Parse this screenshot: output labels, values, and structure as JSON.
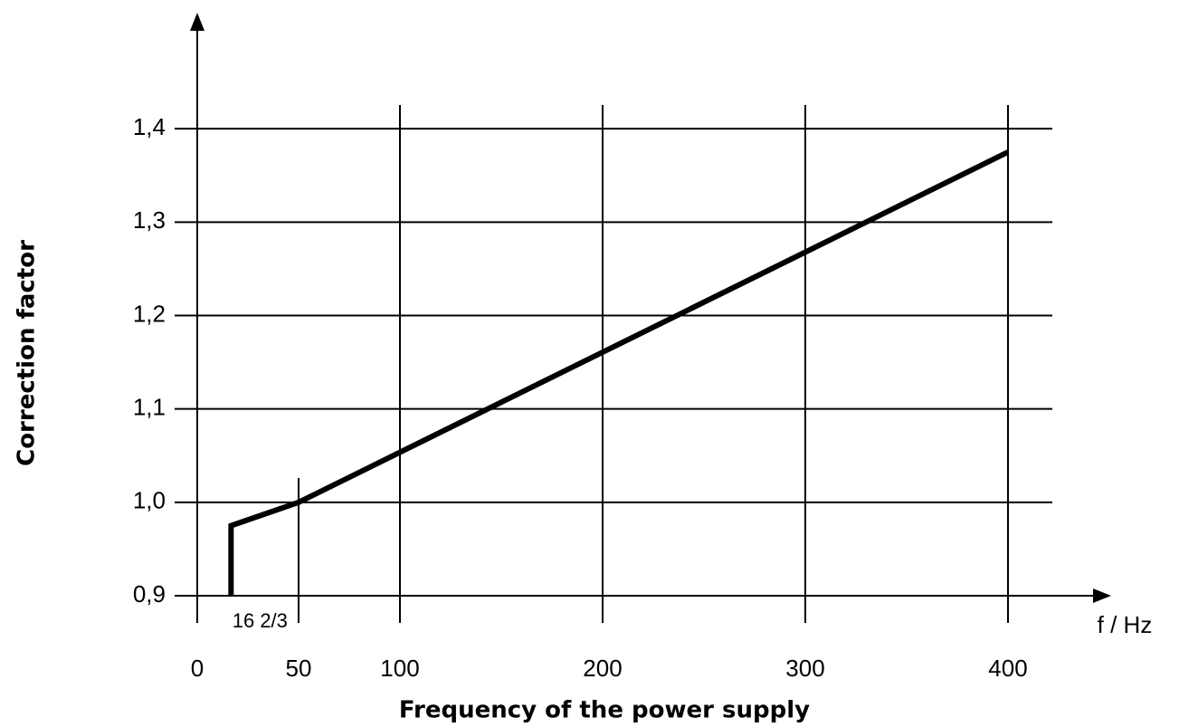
{
  "chart_data": {
    "type": "line",
    "y_label": "Correction factor",
    "x_label": "Frequency of the power supply",
    "x_unit": "f / Hz",
    "series": [
      {
        "color": "#000000",
        "x": [
          16.667,
          16.667,
          50,
          400
        ],
        "values": [
          0.9,
          0.975,
          1.0,
          1.375
        ]
      }
    ],
    "xlim": [
      0,
      450
    ],
    "ylim": [
      0.9,
      1.5
    ],
    "xticks": [
      0,
      {
        "value": 16.667,
        "label": "16 2/3"
      },
      50,
      100,
      200,
      300,
      400
    ],
    "yticks": [
      {
        "value": 0.9,
        "label": "0,9"
      },
      {
        "value": 1.0,
        "label": "1,0"
      },
      {
        "value": 1.1,
        "label": "1,1"
      },
      {
        "value": 1.2,
        "label": "1,2"
      },
      {
        "value": 1.3,
        "label": "1,3"
      },
      {
        "value": 1.4,
        "label": "1,4"
      }
    ],
    "grid": true
  }
}
